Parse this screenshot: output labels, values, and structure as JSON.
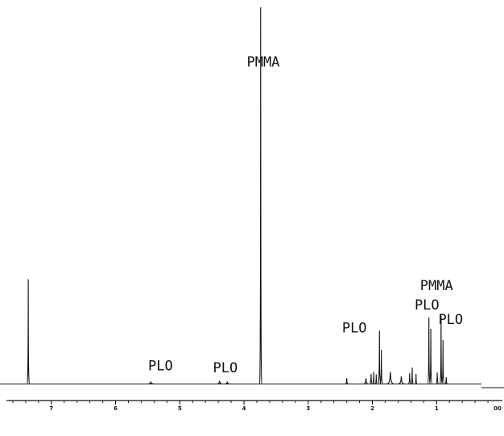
{
  "chart_data": {
    "type": "line",
    "title": "",
    "xlabel": "",
    "ylabel": "",
    "x_axis": {
      "reversed": true,
      "range": [
        7.8,
        -0.05
      ],
      "ticks": [
        "7",
        "6",
        "5",
        "4",
        "3",
        "2",
        "1",
        "00"
      ],
      "tick_values": [
        7,
        6,
        5,
        4,
        3,
        2,
        1,
        0
      ]
    },
    "y_axis": {
      "visible": false,
      "range": [
        0,
        100
      ]
    },
    "grid": false,
    "legend": "none",
    "line_color": "#111111",
    "baseline_segments": [
      {
        "x_start": 7.8,
        "x_end": 0.3,
        "y": 1.2
      },
      {
        "x_start": 0.3,
        "x_end": -0.05,
        "y": 0.2
      }
    ],
    "peaks": [
      {
        "x": 7.36,
        "height": 27.5,
        "width": 0.006
      },
      {
        "x": 5.45,
        "height": 0.5,
        "width": 0.04
      },
      {
        "x": 4.38,
        "height": 0.8,
        "width": 0.035
      },
      {
        "x": 4.26,
        "height": 0.6,
        "width": 0.03
      },
      {
        "x": 3.74,
        "height": 99,
        "width": 0.008
      },
      {
        "x": 2.4,
        "height": 1.5,
        "width": 0.02
      },
      {
        "x": 2.1,
        "height": 1.5,
        "width": 0.03
      },
      {
        "x": 2.02,
        "height": 2.6,
        "width": 0.02
      },
      {
        "x": 1.98,
        "height": 3.2,
        "width": 0.015
      },
      {
        "x": 1.94,
        "height": 2.5,
        "width": 0.015
      },
      {
        "x": 1.89,
        "height": 14.0,
        "width": 0.008
      },
      {
        "x": 1.86,
        "height": 9.0,
        "width": 0.01
      },
      {
        "x": 1.72,
        "height": 3.2,
        "width": 0.05
      },
      {
        "x": 1.55,
        "height": 2.0,
        "width": 0.04
      },
      {
        "x": 1.42,
        "height": 2.8,
        "width": 0.02
      },
      {
        "x": 1.38,
        "height": 4.3,
        "width": 0.015
      },
      {
        "x": 1.32,
        "height": 2.6,
        "width": 0.015
      },
      {
        "x": 1.12,
        "height": 17.5,
        "width": 0.006
      },
      {
        "x": 1.09,
        "height": 14.5,
        "width": 0.007
      },
      {
        "x": 0.99,
        "height": 3.0,
        "width": 0.02
      },
      {
        "x": 0.93,
        "height": 18.0,
        "width": 0.006
      },
      {
        "x": 0.9,
        "height": 11.5,
        "width": 0.007
      },
      {
        "x": 0.85,
        "height": 1.8,
        "width": 0.02
      }
    ],
    "annotations": [
      {
        "text": "PMMA",
        "x": 3.7,
        "y": 84.6
      },
      {
        "text": "PMMA",
        "x": 1.0,
        "y": 25.9
      },
      {
        "text": "PLO",
        "x": 1.15,
        "y": 20.8
      },
      {
        "text": "PLO",
        "x": 0.78,
        "y": 17.0
      },
      {
        "text": "PLO",
        "x": 2.28,
        "y": 14.7
      },
      {
        "text": "PLO",
        "x": 5.3,
        "y": 4.8
      },
      {
        "text": "PLO",
        "x": 4.29,
        "y": 4.2
      }
    ]
  }
}
